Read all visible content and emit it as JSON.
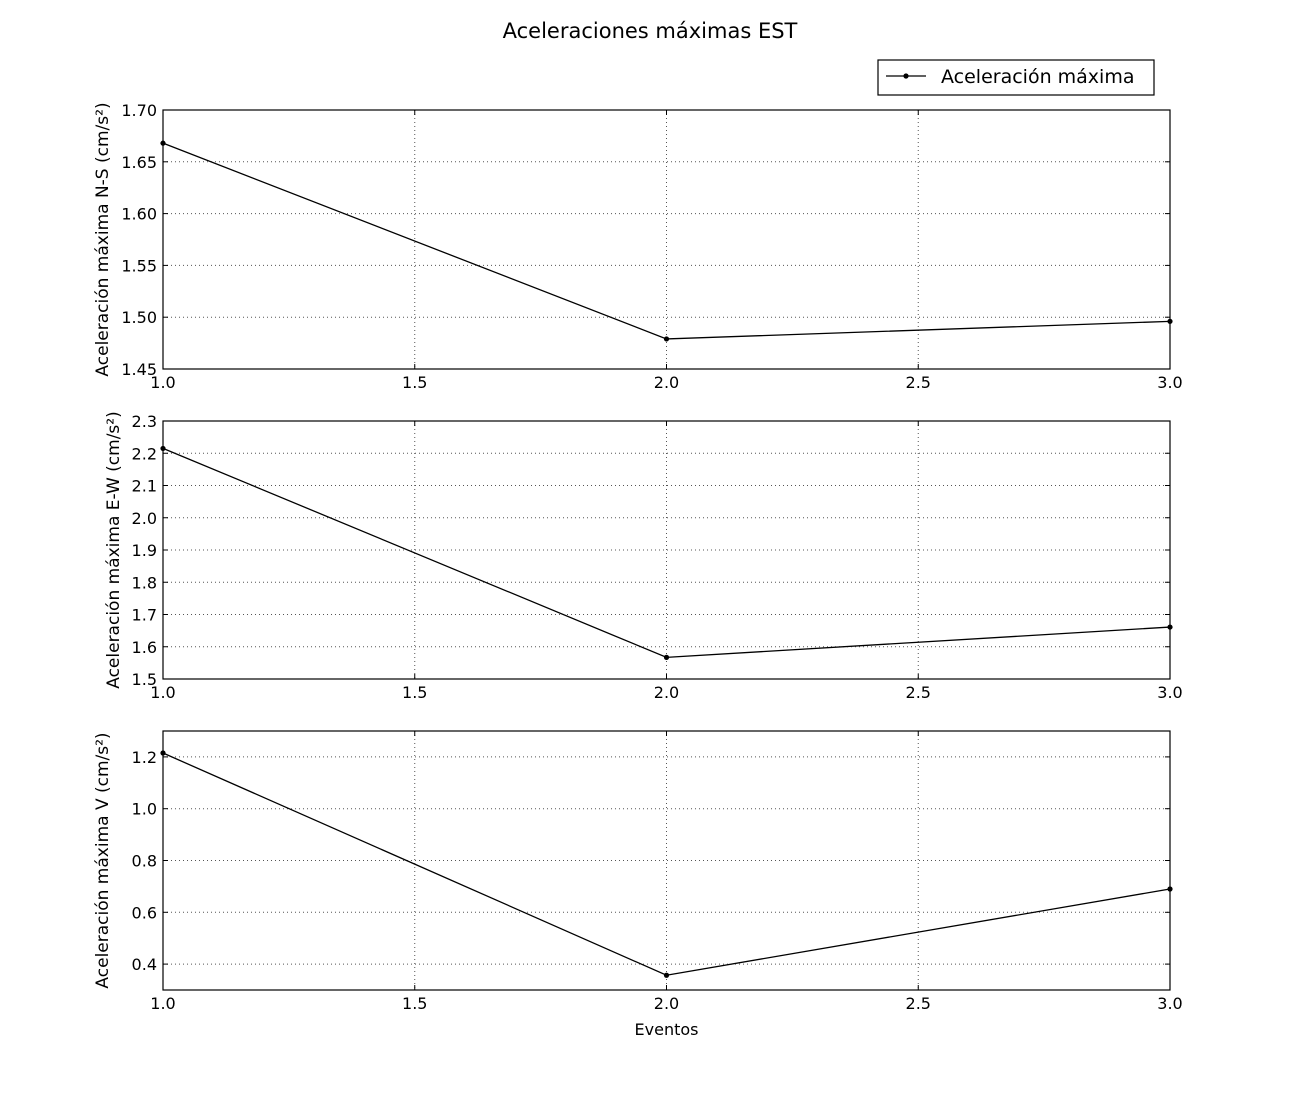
{
  "figure": {
    "title": "Aceleraciones máximas EST",
    "xlabel": "Eventos",
    "legend_label": "Aceleración máxima"
  },
  "colors": {
    "line": "#000000",
    "grid": "#555555",
    "background": "#ffffff"
  },
  "chart_data": [
    {
      "type": "line",
      "title": "",
      "xlabel": "",
      "ylabel": "Aceleración máxima N-S (cm/s²)",
      "x": [
        1.0,
        2.0,
        3.0
      ],
      "xlim": [
        1.0,
        3.0
      ],
      "xticks": [
        "1.0",
        "1.5",
        "2.0",
        "2.5",
        "3.0"
      ],
      "ylim": [
        1.45,
        1.7
      ],
      "yticks": [
        "1.45",
        "1.50",
        "1.55",
        "1.60",
        "1.65",
        "1.70"
      ],
      "grid": true,
      "legend": "top-right",
      "series": [
        {
          "name": "Aceleración máxima",
          "values": [
            1.668,
            1.479,
            1.496
          ]
        }
      ]
    },
    {
      "type": "line",
      "title": "",
      "xlabel": "",
      "ylabel": "Aceleración máxima E-W (cm/s²)",
      "x": [
        1.0,
        2.0,
        3.0
      ],
      "xlim": [
        1.0,
        3.0
      ],
      "xticks": [
        "1.0",
        "1.5",
        "2.0",
        "2.5",
        "3.0"
      ],
      "ylim": [
        1.5,
        2.3
      ],
      "yticks": [
        "1.5",
        "1.6",
        "1.7",
        "1.8",
        "1.9",
        "2.0",
        "2.1",
        "2.2",
        "2.3"
      ],
      "grid": true,
      "series": [
        {
          "name": "Aceleración máxima",
          "values": [
            2.215,
            1.567,
            1.661
          ]
        }
      ]
    },
    {
      "type": "line",
      "title": "",
      "xlabel": "Eventos",
      "ylabel": "Aceleración máxima V (cm/s²)",
      "x": [
        1.0,
        2.0,
        3.0
      ],
      "xlim": [
        1.0,
        3.0
      ],
      "xticks": [
        "1.0",
        "1.5",
        "2.0",
        "2.5",
        "3.0"
      ],
      "ylim": [
        0.3,
        1.3
      ],
      "yticks": [
        "0.4",
        "0.6",
        "0.8",
        "1.0",
        "1.2"
      ],
      "grid": true,
      "series": [
        {
          "name": "Aceleración máxima",
          "values": [
            1.215,
            0.357,
            0.69
          ]
        }
      ]
    }
  ]
}
